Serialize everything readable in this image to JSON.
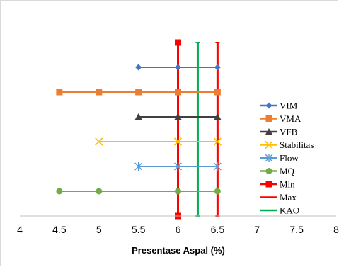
{
  "chart_data": {
    "type": "line",
    "title": "",
    "xlabel": "Presentase Aspal (%)",
    "ylabel": "",
    "xlim": [
      4,
      8
    ],
    "x_ticks": [
      "4",
      "4.5",
      "5",
      "5.5",
      "6",
      "6.5",
      "7",
      "7.5",
      "8"
    ],
    "grid": false,
    "legend_position": "right",
    "series": [
      {
        "name": "VIM",
        "x": [
          5.5,
          6,
          6.5
        ],
        "marker": "diamond",
        "color": "#4472c4"
      },
      {
        "name": "VMA",
        "x": [
          4.5,
          5,
          5.5,
          6,
          6.5
        ],
        "marker": "square",
        "color": "#ed7d31"
      },
      {
        "name": "VFB",
        "x": [
          5.5,
          6,
          6.5
        ],
        "marker": "triangle",
        "color": "#404040"
      },
      {
        "name": "Stabilitas",
        "x": [
          5,
          6,
          6.5
        ],
        "marker": "x",
        "color": "#ffc000"
      },
      {
        "name": "Flow",
        "x": [
          5.5,
          6,
          6.5
        ],
        "marker": "asterisk",
        "color": "#5b9bd5"
      },
      {
        "name": "MQ",
        "x": [
          4.5,
          5,
          6,
          6.5
        ],
        "marker": "circle",
        "color": "#70ad47"
      }
    ],
    "reference_lines": [
      {
        "name": "Min",
        "x": 6,
        "color": "#ff0000",
        "marker": "square"
      },
      {
        "name": "Max",
        "x": 6.5,
        "color": "#ff0000",
        "marker": "none"
      },
      {
        "name": "KAO",
        "x": 6.25,
        "color": "#00b050",
        "marker": "none"
      }
    ]
  }
}
